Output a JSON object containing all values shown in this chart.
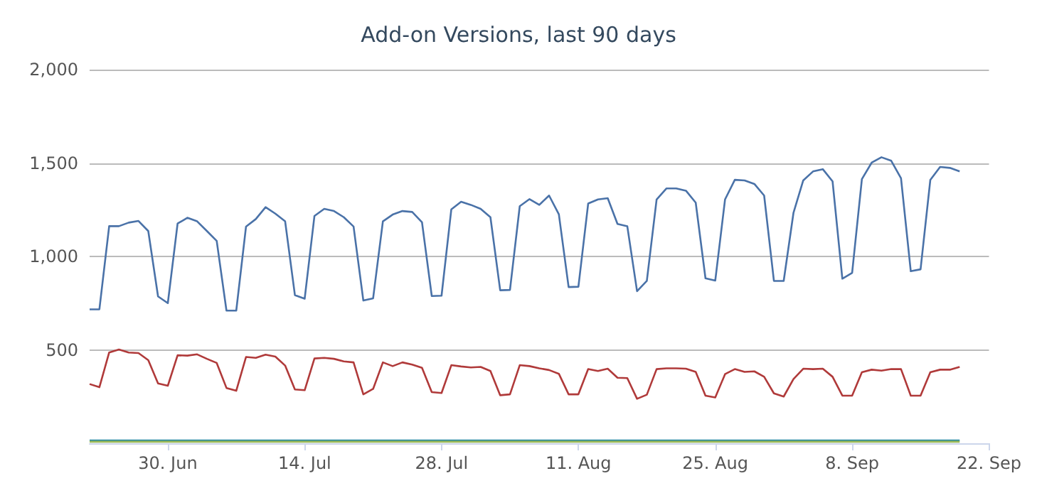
{
  "chart_data": {
    "type": "line",
    "title": "Add-on Versions, last 90 days",
    "x": [
      "--06-22",
      "--06-23",
      "--06-24",
      "--06-25",
      "--06-26",
      "--06-27",
      "--06-28",
      "--06-29",
      "--06-30",
      "--07-01",
      "--07-02",
      "--07-03",
      "--07-04",
      "--07-05",
      "--07-06",
      "--07-07",
      "--07-08",
      "--07-09",
      "--07-10",
      "--07-11",
      "--07-12",
      "--07-13",
      "--07-14",
      "--07-15",
      "--07-16",
      "--07-17",
      "--07-18",
      "--07-19",
      "--07-20",
      "--07-21",
      "--07-22",
      "--07-23",
      "--07-24",
      "--07-25",
      "--07-26",
      "--07-27",
      "--07-28",
      "--07-29",
      "--07-30",
      "--07-31",
      "--08-01",
      "--08-02",
      "--08-03",
      "--08-04",
      "--08-05",
      "--08-06",
      "--08-07",
      "--08-08",
      "--08-09",
      "--08-10",
      "--08-11",
      "--08-12",
      "--08-13",
      "--08-14",
      "--08-15",
      "--08-16",
      "--08-17",
      "--08-18",
      "--08-19",
      "--08-20",
      "--08-21",
      "--08-22",
      "--08-23",
      "--08-24",
      "--08-25",
      "--08-26",
      "--08-27",
      "--08-28",
      "--08-29",
      "--08-30",
      "--08-31",
      "--09-01",
      "--09-02",
      "--09-03",
      "--09-04",
      "--09-05",
      "--09-06",
      "--09-07",
      "--09-08",
      "--09-09",
      "--09-10",
      "--09-11",
      "--09-12",
      "--09-13",
      "--09-14",
      "--09-15",
      "--09-16",
      "--09-17",
      "--09-18",
      "--09-19"
    ],
    "series": [
      {
        "color": "#4a72a8",
        "values": [
          717,
          717,
          1162,
          1162,
          1181,
          1190,
          1136,
          786,
          750,
          1176,
          1207,
          1188,
          1136,
          1083,
          710,
          710,
          1160,
          1200,
          1264,
          1229,
          1188,
          793,
          774,
          1217,
          1255,
          1243,
          1210,
          1160,
          764,
          776,
          1188,
          1224,
          1243,
          1238,
          1183,
          788,
          790,
          1252,
          1293,
          1276,
          1255,
          1210,
          819,
          821,
          1269,
          1307,
          1276,
          1326,
          1226,
          836,
          838,
          1283,
          1305,
          1312,
          1174,
          1162,
          814,
          869,
          1305,
          1364,
          1364,
          1352,
          1288,
          883,
          871,
          1305,
          1410,
          1407,
          1388,
          1326,
          869,
          869,
          1233,
          1407,
          1455,
          1467,
          1402,
          881,
          912,
          1414,
          1502,
          1531,
          1512,
          1419,
          921,
          931,
          1410,
          1479,
          1474,
          1455
        ]
      },
      {
        "color": "#b03a3a",
        "values": [
          317,
          300,
          486,
          502,
          486,
          483,
          445,
          320,
          308,
          471,
          469,
          476,
          452,
          430,
          296,
          281,
          462,
          457,
          474,
          464,
          416,
          288,
          284,
          454,
          457,
          452,
          438,
          433,
          262,
          291,
          433,
          413,
          433,
          421,
          404,
          274,
          269,
          418,
          411,
          406,
          409,
          387,
          257,
          262,
          418,
          413,
          401,
          392,
          372,
          262,
          262,
          397,
          387,
          399,
          351,
          349,
          238,
          260,
          397,
          401,
          401,
          399,
          382,
          255,
          245,
          370,
          397,
          382,
          385,
          356,
          267,
          250,
          344,
          399,
          397,
          399,
          356,
          255,
          255,
          380,
          394,
          389,
          397,
          397,
          255,
          255,
          380,
          394,
          394,
          409
        ]
      },
      {
        "color": "#2a8aa0",
        "x": [
          "--06-22",
          "--06-29",
          "--07-06",
          "--07-13",
          "--07-20",
          "--07-27",
          "--08-03",
          "--08-10",
          "--08-17",
          "--08-24",
          "--08-31",
          "--09-07",
          "--09-14",
          "--09-19"
        ],
        "values": [
          15,
          15,
          15,
          15,
          15,
          15,
          15,
          15,
          15,
          15,
          15,
          15,
          15,
          15
        ]
      },
      {
        "color": "#9ab858",
        "x": [
          "--06-22",
          "--06-29",
          "--07-06",
          "--07-13",
          "--07-20",
          "--07-27",
          "--08-03",
          "--08-10",
          "--08-17",
          "--08-24",
          "--08-31",
          "--09-07",
          "--09-14",
          "--09-19"
        ],
        "values": [
          8,
          8,
          8,
          8,
          8,
          8,
          8,
          8,
          8,
          8,
          8,
          8,
          8,
          8
        ]
      }
    ],
    "xlim": [
      "--06-22",
      "--09-22"
    ],
    "xticks": [
      {
        "value": "--06-30",
        "label": "30. Jun"
      },
      {
        "value": "--07-14",
        "label": "14. Jul"
      },
      {
        "value": "--07-28",
        "label": "28. Jul"
      },
      {
        "value": "--08-11",
        "label": "11. Aug"
      },
      {
        "value": "--08-25",
        "label": "25. Aug"
      },
      {
        "value": "--09-08",
        "label": "8. Sep"
      },
      {
        "value": "--09-22",
        "label": "22. Sep"
      }
    ],
    "ylim": [
      0,
      2000
    ],
    "yticks": [
      {
        "value": 0,
        "label": null
      },
      500,
      {
        "value": 1000,
        "label": "1,000"
      },
      {
        "value": 1500,
        "label": "1,500"
      },
      {
        "value": 2000,
        "label": "2,000"
      }
    ],
    "grid": "y",
    "marker": "none",
    "line_style": "solid"
  }
}
